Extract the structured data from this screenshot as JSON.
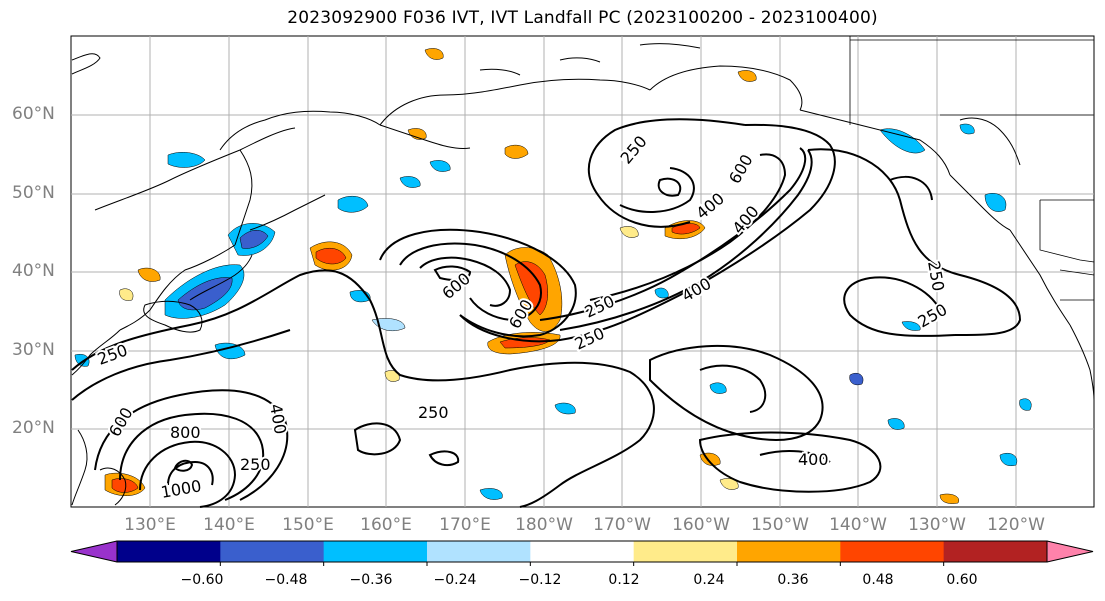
{
  "title": "2023092900 F036 IVT, IVT Landfall PC (2023100200 - 2023100400)",
  "lat_labels": [
    "60°N",
    "50°N",
    "40°N",
    "30°N",
    "20°N"
  ],
  "lon_labels": [
    "130°E",
    "140°E",
    "150°E",
    "160°E",
    "170°E",
    "180°W",
    "170°W",
    "160°W",
    "150°W",
    "140°W",
    "130°W",
    "120°W"
  ],
  "contour_labels": [
    "250",
    "250",
    "250",
    "250",
    "250",
    "250",
    "250",
    "250",
    "400",
    "400",
    "400",
    "400",
    "400",
    "600",
    "600",
    "600",
    "600",
    "800",
    "1000"
  ],
  "colorbar": {
    "ticks": [
      "−0.60",
      "−0.48",
      "−0.36",
      "−0.24",
      "−0.12",
      "0.12",
      "0.24",
      "0.36",
      "0.48",
      "0.60"
    ],
    "colors": [
      "#9932CC",
      "#00008B",
      "#3A5FCD",
      "#00BFFF",
      "#B0E2FF",
      "#FFFFFF",
      "#FFEB8A",
      "#FFA500",
      "#FF4500",
      "#B22222",
      "#FF82AB"
    ]
  }
}
